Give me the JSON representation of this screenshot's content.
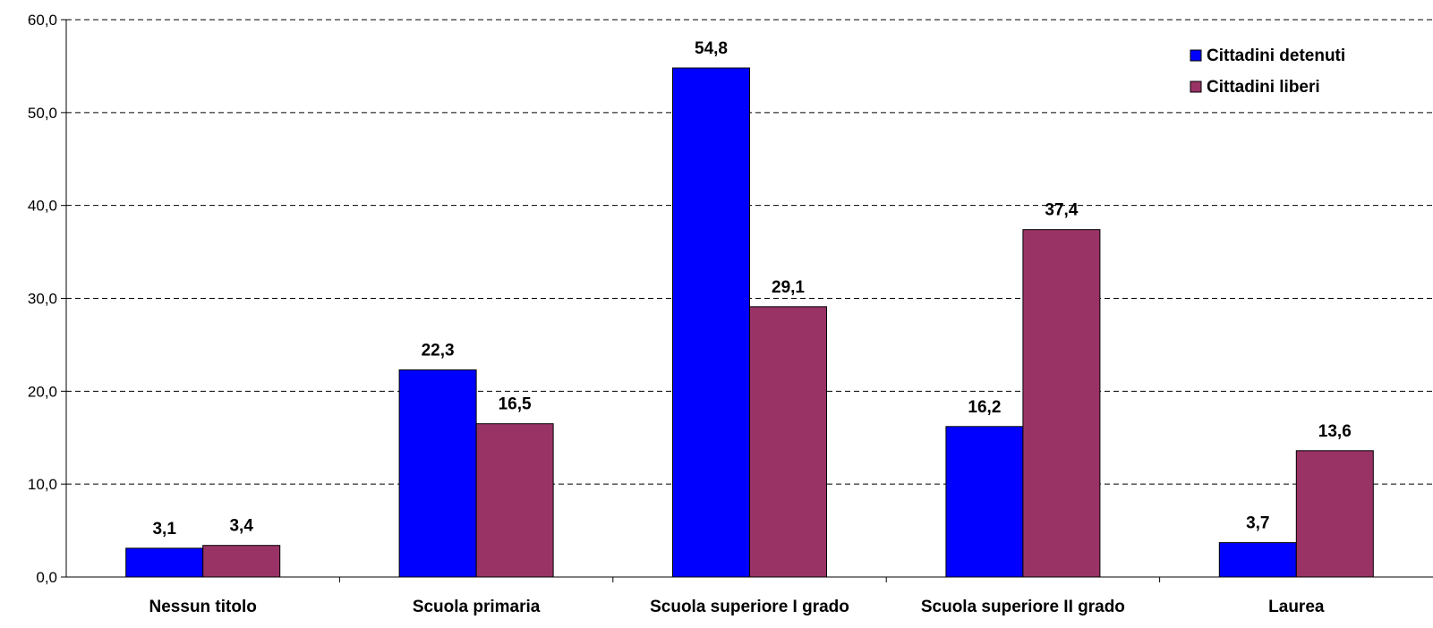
{
  "chart_data": {
    "type": "bar",
    "categories": [
      "Nessun titolo",
      "Scuola primaria",
      "Scuola superiore I grado",
      "Scuola superiore II grado",
      "Laurea"
    ],
    "series": [
      {
        "name": "Cittadini detenuti",
        "color": "#0000ff",
        "values": [
          3.1,
          22.3,
          54.8,
          16.2,
          3.7
        ],
        "labels": [
          "3,1",
          "22,3",
          "54,8",
          "16,2",
          "3,7"
        ]
      },
      {
        "name": "Cittadini liberi",
        "color": "#993366",
        "values": [
          3.4,
          16.5,
          29.1,
          37.4,
          13.6
        ],
        "labels": [
          "3,4",
          "16,5",
          "29,1",
          "37,4",
          "13,6"
        ]
      }
    ],
    "ylim": [
      0,
      60
    ],
    "yticks": [
      0,
      10,
      20,
      30,
      40,
      50,
      60
    ],
    "ytick_labels": [
      "0,0",
      "10,0",
      "20,0",
      "30,0",
      "40,0",
      "50,0",
      "60,0"
    ],
    "grid": "horizontal-dashed",
    "legend_position": "top-right"
  }
}
